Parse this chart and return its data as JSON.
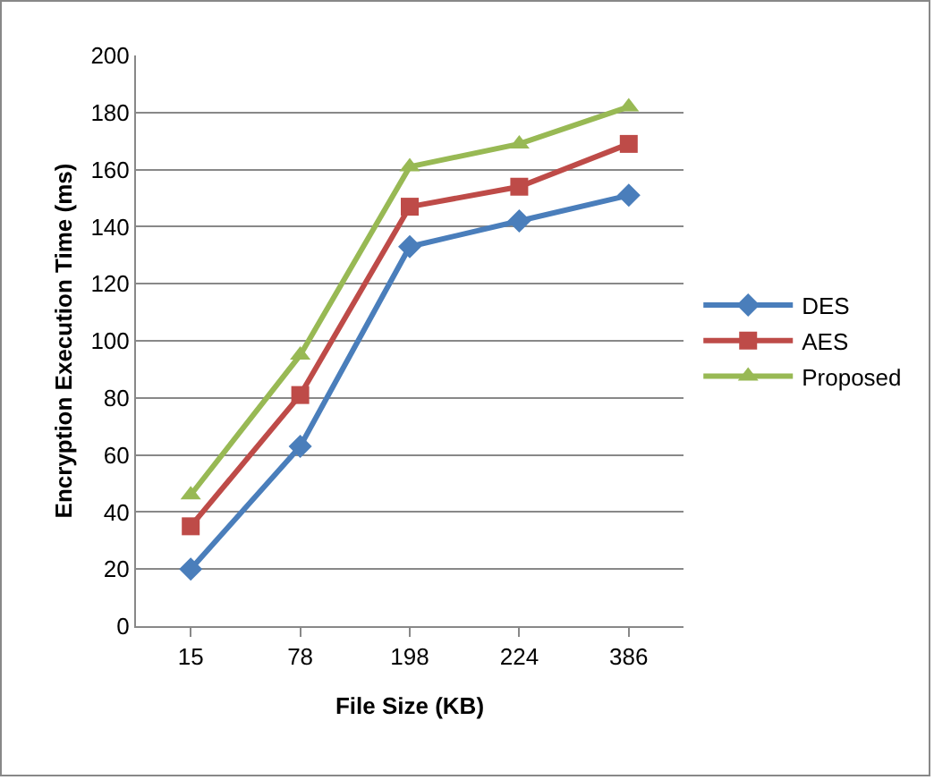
{
  "chart_data": {
    "type": "line",
    "xlabel": "File Size (KB)",
    "ylabel": "Encryption Execution Time (ms)",
    "categories": [
      "15",
      "78",
      "198",
      "224",
      "386"
    ],
    "series": [
      {
        "name": "DES",
        "color": "#4a7ebb",
        "marker": "diamond",
        "values": [
          20,
          63,
          133,
          142,
          151
        ]
      },
      {
        "name": "AES",
        "color": "#be4b48",
        "marker": "square",
        "values": [
          35,
          81,
          147,
          154,
          169
        ]
      },
      {
        "name": "Proposed",
        "color": "#98b954",
        "marker": "triangle",
        "values": [
          46,
          95,
          161,
          169,
          182
        ]
      }
    ],
    "ylim": [
      0,
      200
    ],
    "yticks": [
      0,
      20,
      40,
      60,
      80,
      100,
      120,
      140,
      160,
      180,
      200
    ],
    "grid": "y",
    "legend": "right"
  }
}
